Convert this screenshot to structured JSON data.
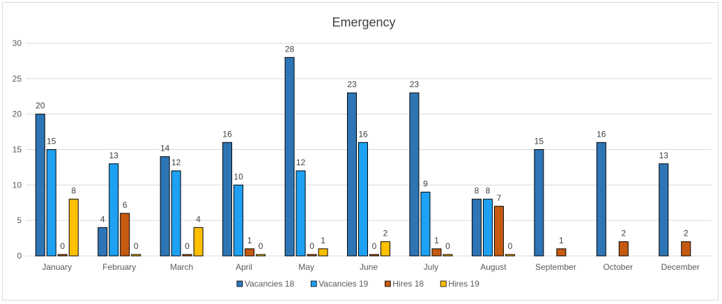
{
  "chart_data": {
    "type": "bar",
    "title": "Emergency",
    "categories": [
      "January",
      "February",
      "March",
      "April",
      "May",
      "June",
      "July",
      "August",
      "September",
      "October",
      "December"
    ],
    "series": [
      {
        "name": "Vacancies 18",
        "color": "#2e75b6",
        "values": [
          20,
          4,
          14,
          16,
          28,
          23,
          23,
          8,
          15,
          16,
          13
        ]
      },
      {
        "name": "Vacancies 19",
        "color": "#1ea1f2",
        "values": [
          15,
          13,
          12,
          10,
          12,
          16,
          9,
          8,
          null,
          null,
          null
        ]
      },
      {
        "name": "Hires 18",
        "color": "#c55a11",
        "values": [
          0,
          6,
          0,
          1,
          0,
          0,
          1,
          7,
          1,
          2,
          2
        ]
      },
      {
        "name": "Hires 19",
        "color": "#ffc000",
        "values": [
          8,
          0,
          4,
          0,
          1,
          2,
          0,
          0,
          null,
          null,
          null
        ]
      }
    ],
    "ylim": [
      0,
      30
    ],
    "yticks": [
      0,
      5,
      10,
      15,
      20,
      25,
      30
    ],
    "grid": true,
    "legend": "bottom",
    "data_labels": true,
    "bar_border_color": "#000000"
  }
}
